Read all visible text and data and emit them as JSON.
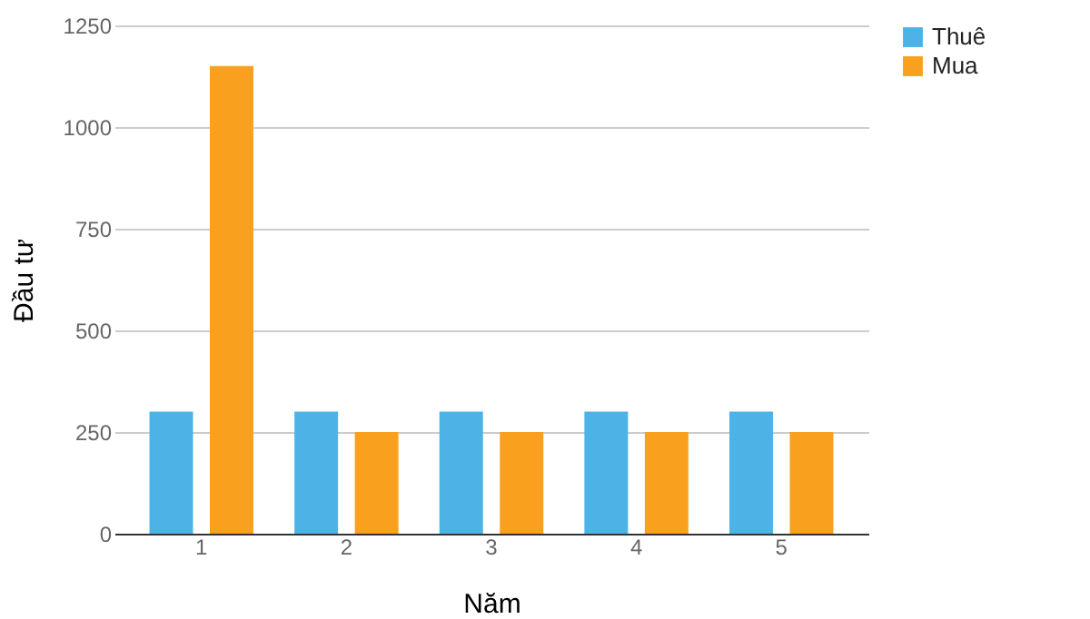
{
  "chart_data": {
    "type": "bar",
    "xlabel": "Năm",
    "ylabel": "Đầu tư",
    "categories": [
      "1",
      "2",
      "3",
      "4",
      "5"
    ],
    "series": [
      {
        "name": "Thuê",
        "color": "#4db3e6",
        "values": [
          300,
          300,
          300,
          300,
          300
        ]
      },
      {
        "name": "Mua",
        "color": "#f9a11f",
        "values": [
          1150,
          250,
          250,
          250,
          250
        ]
      }
    ],
    "ylim": [
      0,
      1250
    ],
    "yticks": [
      0,
      250,
      500,
      750,
      1000,
      1250
    ],
    "grid": "y",
    "legend": "top right"
  }
}
